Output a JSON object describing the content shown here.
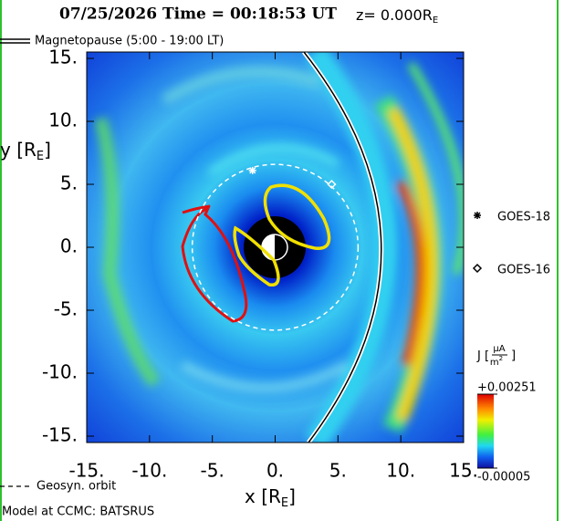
{
  "chart_data": {
    "type": "map",
    "title": "07/25/2026 Time = 00:18:53 UT",
    "z_label": {
      "text": "z= 0.000R",
      "sub": "E"
    },
    "x_label": {
      "text": "x [R",
      "sub": "E",
      "end": "]"
    },
    "y_label": {
      "text": "y [R",
      "sub": "E",
      "end": "]"
    },
    "legend_top": "Magnetopause (5:00 - 19:00 LT)",
    "legend_bottom": "Geosyn. orbit",
    "credit": "Model at CCMC: BATSRUS",
    "xlim": [
      -15,
      15
    ],
    "ylim": [
      -15,
      15
    ],
    "xticks": [
      {
        "value": -15,
        "label": "-15."
      },
      {
        "value": -10,
        "label": "-10."
      },
      {
        "value": -5,
        "label": "-5."
      },
      {
        "value": 0,
        "label": "0."
      },
      {
        "value": 5,
        "label": "5."
      },
      {
        "value": 10,
        "label": "10."
      },
      {
        "value": 15,
        "label": "15."
      }
    ],
    "yticks": [
      {
        "value": -15,
        "label": "-15."
      },
      {
        "value": -10,
        "label": "-10."
      },
      {
        "value": -5,
        "label": "-5."
      },
      {
        "value": 0,
        "label": "0."
      },
      {
        "value": 5,
        "label": "5."
      },
      {
        "value": 10,
        "label": "10."
      },
      {
        "value": 15,
        "label": "15."
      }
    ],
    "geosync_radius": 6.6,
    "satellites": [
      {
        "name": "GOES-18",
        "x": -1.8,
        "y": 6.1,
        "marker": "asterisk"
      },
      {
        "name": "GOES-16",
        "x": 4.5,
        "y": 5.0,
        "marker": "diamond"
      }
    ],
    "colorbar": {
      "label": {
        "text": "J [",
        "num": "µA",
        "den": "m",
        "den_sup": "2",
        "end": "]"
      },
      "clim": [
        -5e-05,
        0.00251
      ],
      "cticks": [
        {
          "value": 0.00251,
          "label": "+0.00251"
        },
        {
          "value": -5e-05,
          "label": "-0.00005"
        }
      ]
    }
  }
}
